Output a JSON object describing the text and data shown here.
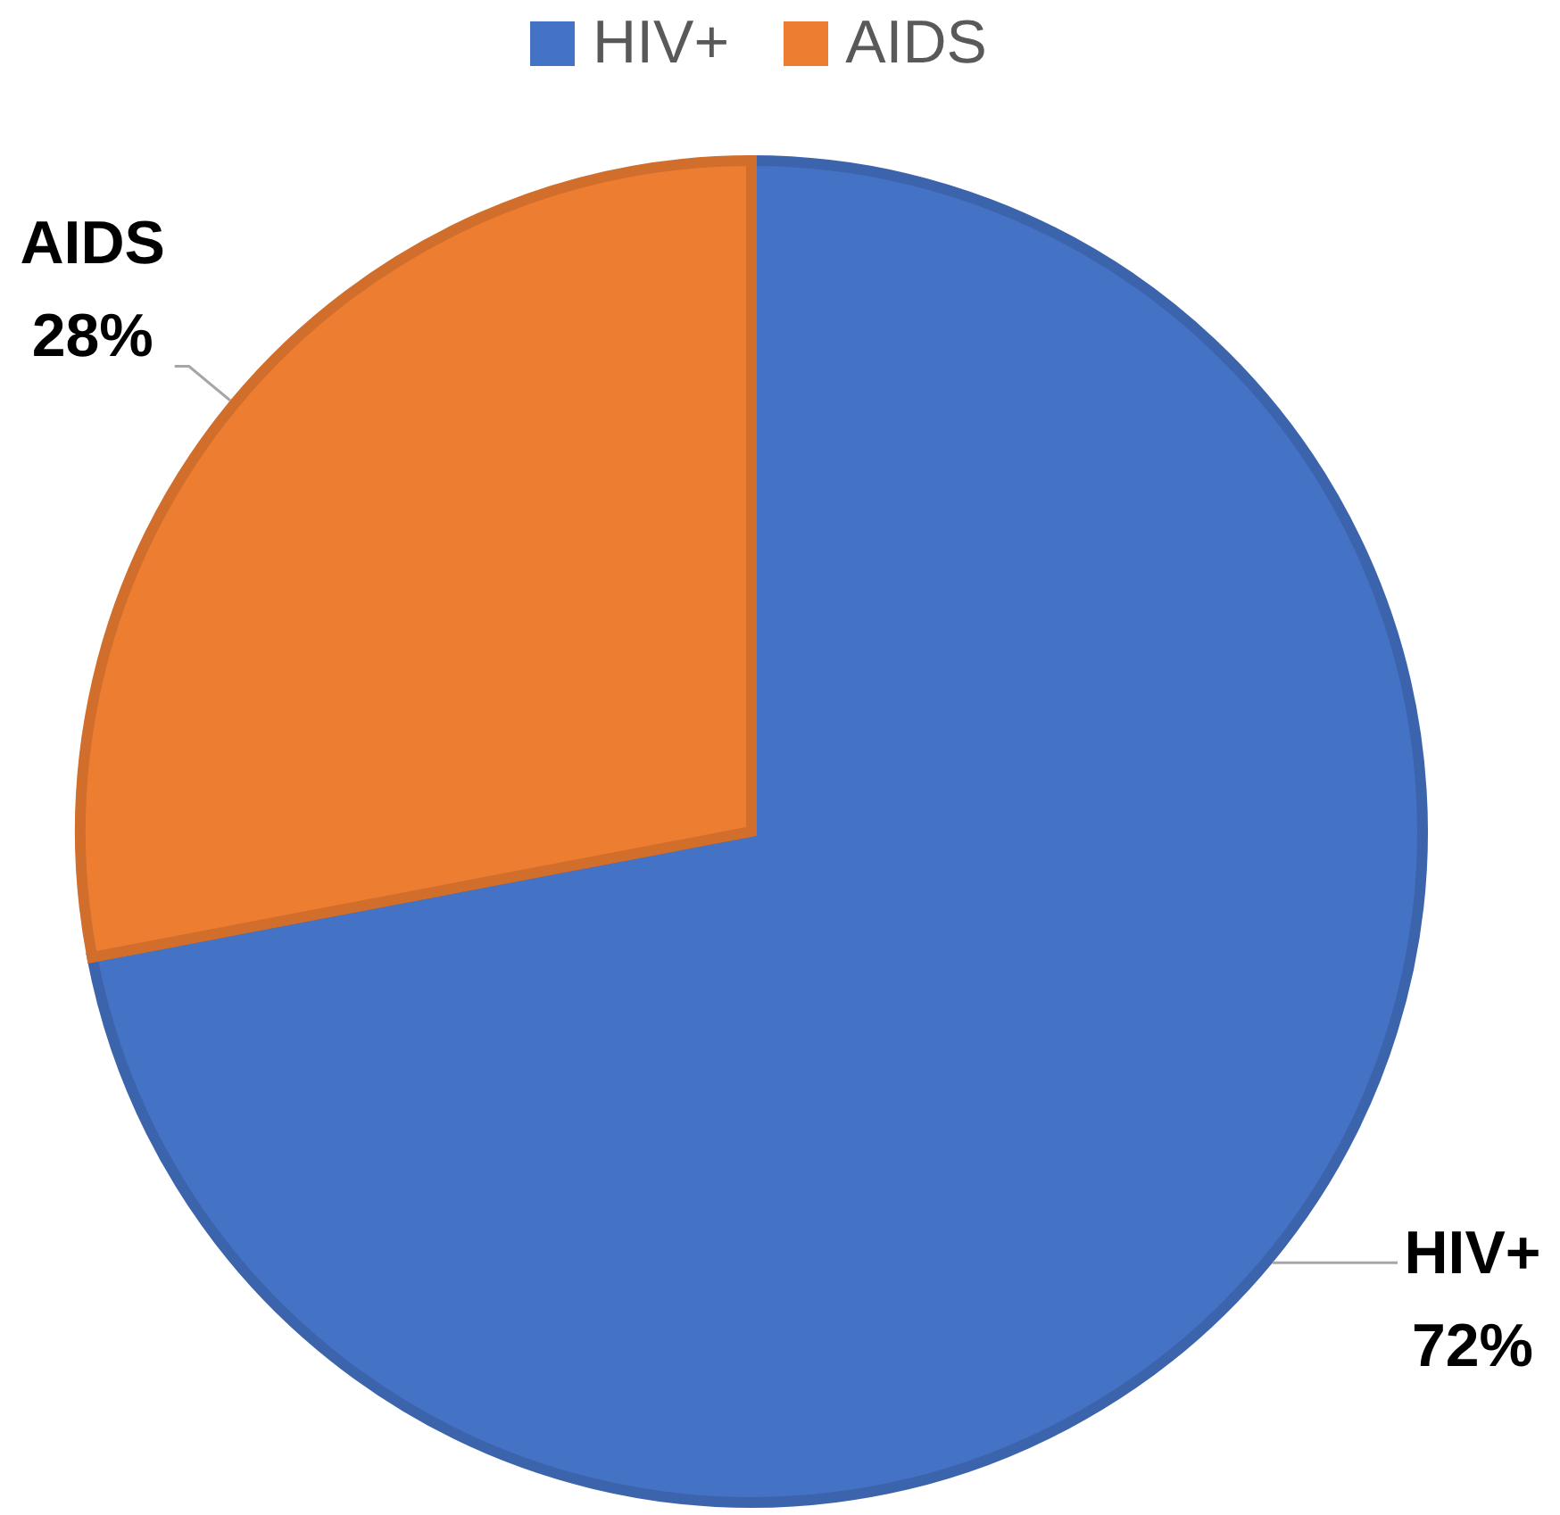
{
  "chart_data": {
    "type": "pie",
    "categories": [
      "HIV+",
      "AIDS"
    ],
    "values": [
      72,
      28
    ],
    "colors": [
      "#4472c4",
      "#ed7d31"
    ],
    "value_labels": [
      "72%",
      "28%"
    ],
    "legend": "top"
  }
}
